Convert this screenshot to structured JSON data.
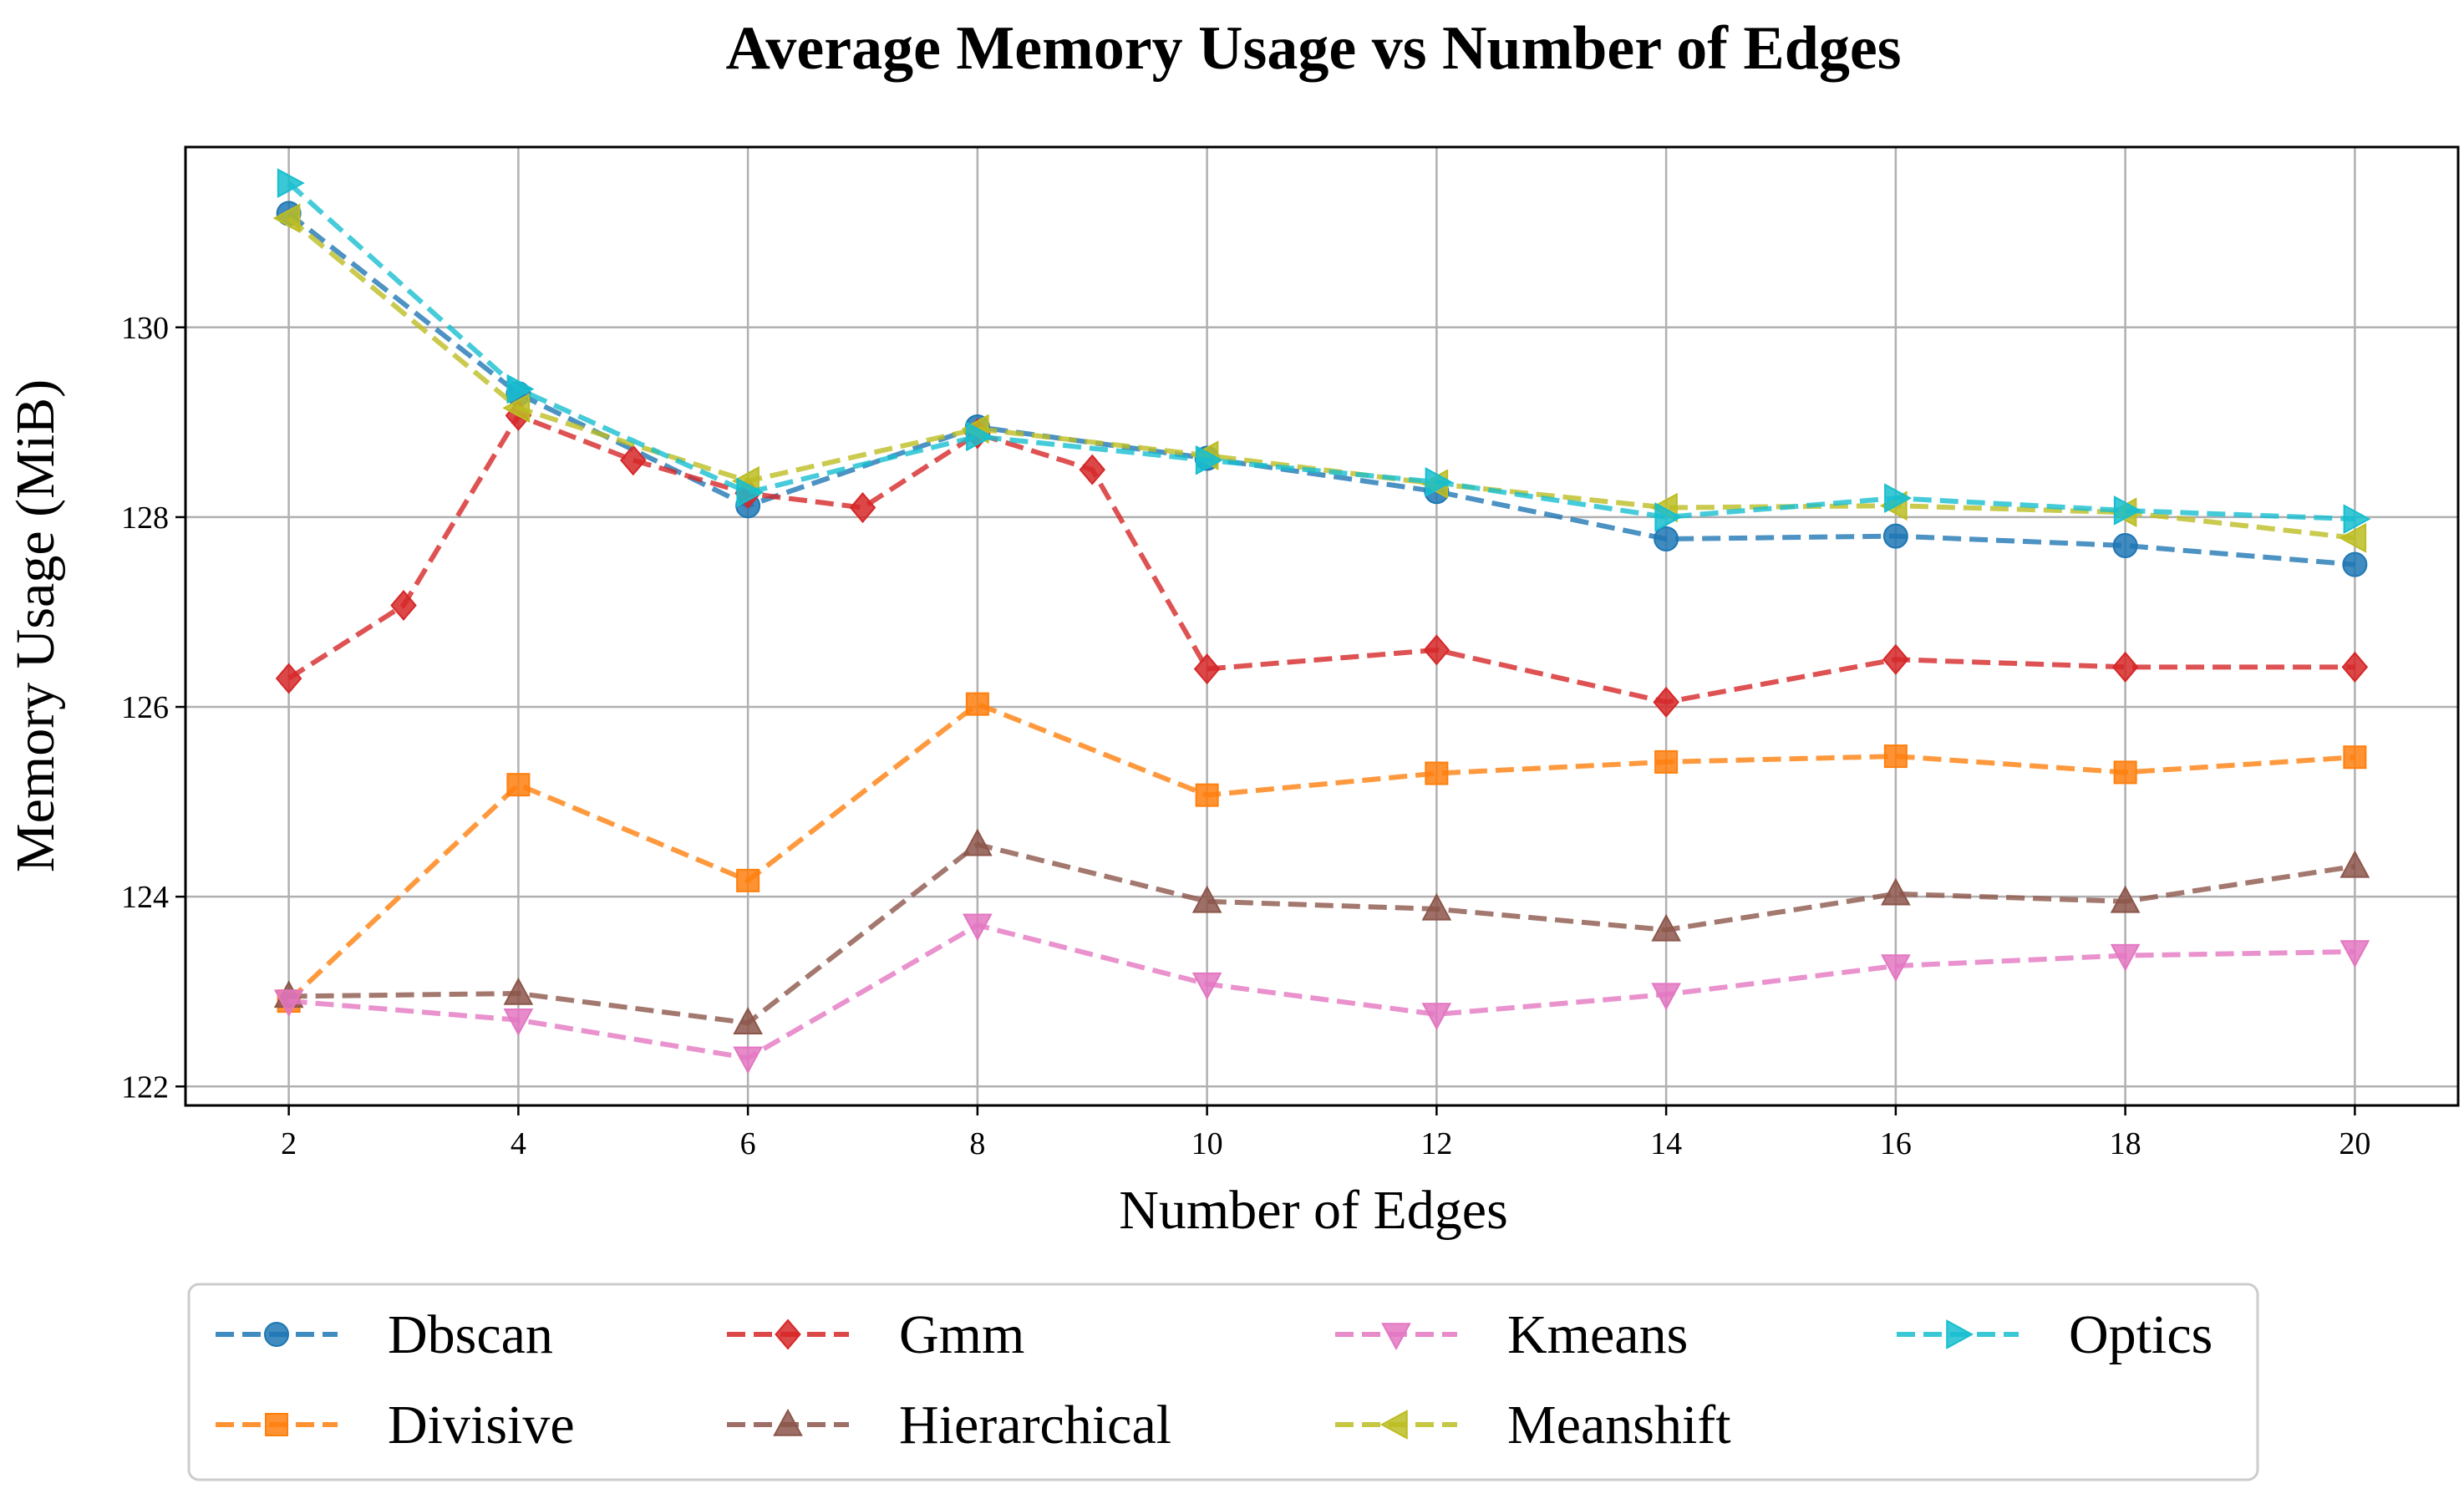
{
  "chart_data": {
    "type": "line",
    "title": "Average Memory Usage vs Number of Edges",
    "xlabel": "Number of Edges",
    "ylabel": "Memory Usage (MiB)",
    "xlim": [
      1.1,
      20.9
    ],
    "ylim": [
      121.8,
      131.9
    ],
    "xticks": [
      2,
      4,
      6,
      8,
      10,
      12,
      14,
      16,
      18,
      20
    ],
    "yticks": [
      122,
      124,
      126,
      128,
      130
    ],
    "grid": true,
    "legend_position": "bottom-center",
    "legend_columns": 4,
    "series": [
      {
        "name": "Dbscan",
        "color": "#1f77b4",
        "marker": "circle",
        "x": [
          2,
          4,
          6,
          8,
          10,
          12,
          14,
          16,
          18,
          20
        ],
        "values": [
          131.2,
          129.3,
          128.12,
          128.95,
          128.62,
          128.27,
          127.77,
          127.8,
          127.7,
          127.5
        ]
      },
      {
        "name": "Divisive",
        "color": "#ff7f0e",
        "marker": "square",
        "x": [
          2,
          4,
          6,
          8,
          10,
          12,
          14,
          16,
          18,
          20
        ],
        "values": [
          122.9,
          125.18,
          124.17,
          126.03,
          125.07,
          125.3,
          125.42,
          125.48,
          125.31,
          125.47
        ]
      },
      {
        "name": "Gmm",
        "color": "#d62728",
        "marker": "diamond",
        "x": [
          2,
          3,
          4,
          5,
          6,
          7,
          8,
          9,
          10,
          12,
          14,
          16,
          18,
          20
        ],
        "values": [
          126.3,
          127.07,
          129.07,
          128.6,
          128.25,
          128.1,
          128.88,
          128.5,
          126.4,
          126.6,
          126.05,
          126.5,
          126.42,
          126.42
        ]
      },
      {
        "name": "Hierarchical",
        "color": "#8c564b",
        "marker": "triangle-up",
        "x": [
          2,
          4,
          6,
          8,
          10,
          12,
          14,
          16,
          18,
          20
        ],
        "values": [
          122.95,
          122.98,
          122.67,
          124.55,
          123.95,
          123.87,
          123.65,
          124.03,
          123.95,
          124.32
        ]
      },
      {
        "name": "Kmeans",
        "color": "#e377c2",
        "marker": "triangle-down",
        "x": [
          2,
          4,
          6,
          8,
          10,
          12,
          14,
          16,
          18,
          20
        ],
        "values": [
          122.9,
          122.7,
          122.3,
          123.7,
          123.08,
          122.76,
          122.97,
          123.27,
          123.38,
          123.42
        ]
      },
      {
        "name": "Meanshift",
        "color": "#bcbd22",
        "marker": "triangle-left",
        "x": [
          2,
          4,
          6,
          8,
          10,
          12,
          14,
          16,
          18,
          20
        ],
        "values": [
          131.15,
          129.15,
          128.38,
          128.93,
          128.65,
          128.35,
          128.1,
          128.12,
          128.05,
          127.78
        ]
      },
      {
        "name": "Optics",
        "color": "#17becf",
        "marker": "triangle-right",
        "x": [
          2,
          4,
          6,
          8,
          10,
          12,
          14,
          16,
          18,
          20
        ],
        "values": [
          131.52,
          129.35,
          128.26,
          128.85,
          128.6,
          128.37,
          128.0,
          128.2,
          128.07,
          127.98
        ]
      }
    ]
  }
}
